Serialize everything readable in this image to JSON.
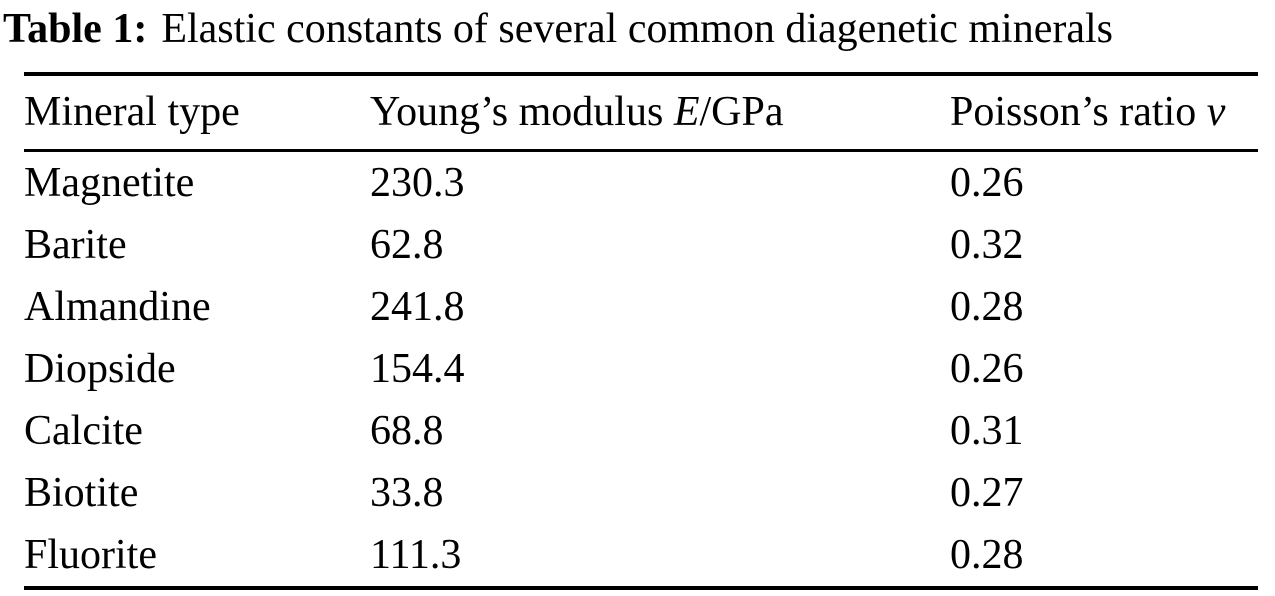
{
  "page": {
    "background_color": "#ffffff",
    "text_color": "#000000"
  },
  "table": {
    "label": "Table 1:",
    "caption": "Elastic constants of several common diagenetic minerals",
    "headers": {
      "mineral": "Mineral type",
      "youngs_prefix": "Young’s modulus ",
      "youngs_symbol": "E",
      "youngs_suffix": "/GPa",
      "poissons_prefix": "Poisson’s ratio ",
      "poissons_symbol": "ν"
    },
    "rows": [
      {
        "mineral": "Magnetite",
        "youngs_modulus": "230.3",
        "poissons_ratio": "0.26"
      },
      {
        "mineral": "Barite",
        "youngs_modulus": "62.8",
        "poissons_ratio": "0.32"
      },
      {
        "mineral": "Almandine",
        "youngs_modulus": "241.8",
        "poissons_ratio": "0.28"
      },
      {
        "mineral": "Diopside",
        "youngs_modulus": "154.4",
        "poissons_ratio": "0.26"
      },
      {
        "mineral": "Calcite",
        "youngs_modulus": "68.8",
        "poissons_ratio": "0.31"
      },
      {
        "mineral": "Biotite",
        "youngs_modulus": "33.8",
        "poissons_ratio": "0.27"
      },
      {
        "mineral": "Fluorite",
        "youngs_modulus": "111.3",
        "poissons_ratio": "0.28"
      }
    ]
  }
}
